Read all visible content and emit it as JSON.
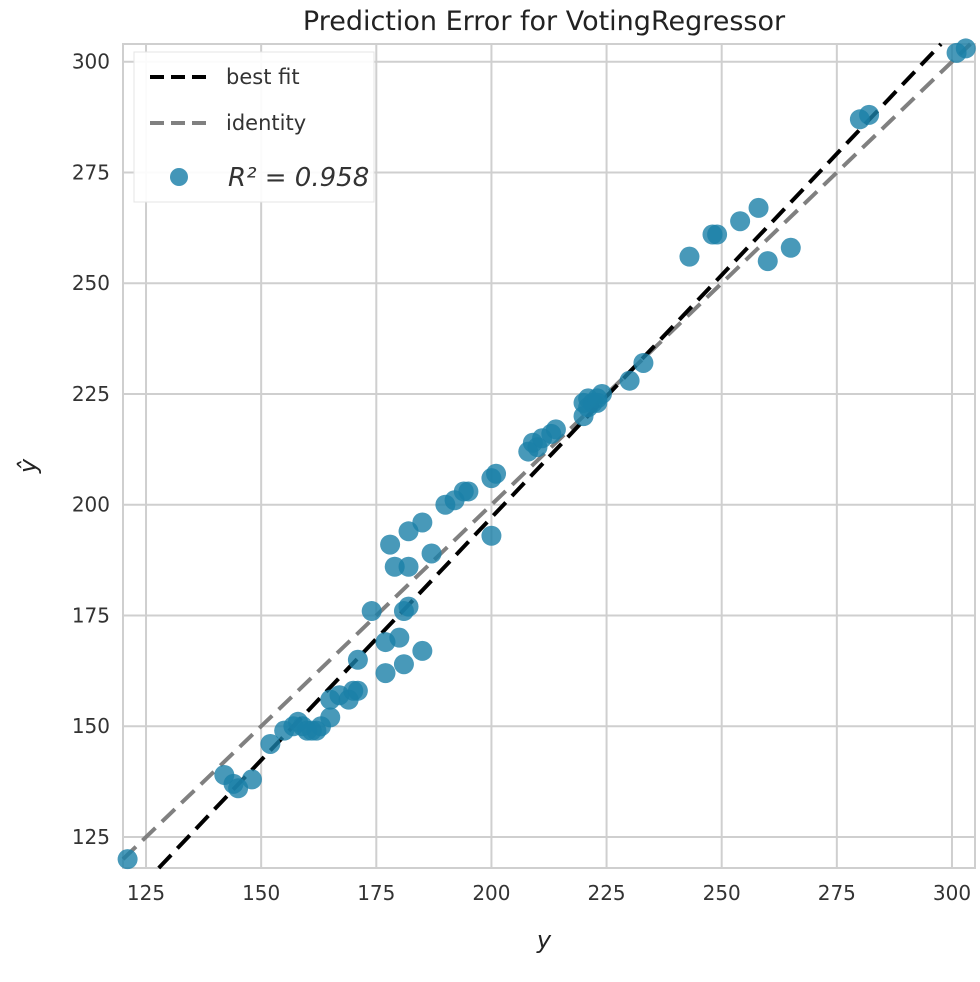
{
  "chart_data": {
    "type": "scatter",
    "title": "Prediction Error for VotingRegressor",
    "xlabel": "y",
    "ylabel": "ŷ",
    "xlim": [
      120,
      305
    ],
    "ylim": [
      118,
      304
    ],
    "x_ticks": [
      125,
      150,
      175,
      200,
      225,
      250,
      275,
      300
    ],
    "y_ticks": [
      125,
      150,
      175,
      200,
      225,
      250,
      275,
      300
    ],
    "grid": true,
    "legend_position": "top-left",
    "legend": {
      "best_fit_label": "best fit",
      "identity_label": "identity",
      "r2_label": "R² = 0.958"
    },
    "colors": {
      "points": "#1a7fa8",
      "best_fit": "#000000",
      "identity": "#808080",
      "grid": "#cfcfcf"
    },
    "best_fit_line": {
      "slope": 1.095,
      "intercept": -21.9
    },
    "identity_line": {
      "slope": 1,
      "intercept": 0
    },
    "points": [
      {
        "x": 121,
        "y": 120
      },
      {
        "x": 142,
        "y": 139
      },
      {
        "x": 144,
        "y": 137
      },
      {
        "x": 145,
        "y": 136
      },
      {
        "x": 148,
        "y": 138
      },
      {
        "x": 152,
        "y": 146
      },
      {
        "x": 155,
        "y": 149
      },
      {
        "x": 157,
        "y": 150
      },
      {
        "x": 158,
        "y": 151
      },
      {
        "x": 159,
        "y": 150
      },
      {
        "x": 160,
        "y": 149
      },
      {
        "x": 161,
        "y": 149
      },
      {
        "x": 162,
        "y": 149
      },
      {
        "x": 163,
        "y": 150
      },
      {
        "x": 165,
        "y": 152
      },
      {
        "x": 165,
        "y": 156
      },
      {
        "x": 167,
        "y": 157
      },
      {
        "x": 169,
        "y": 156
      },
      {
        "x": 170,
        "y": 158
      },
      {
        "x": 171,
        "y": 158
      },
      {
        "x": 171,
        "y": 165
      },
      {
        "x": 174,
        "y": 176
      },
      {
        "x": 177,
        "y": 162
      },
      {
        "x": 177,
        "y": 169
      },
      {
        "x": 178,
        "y": 191
      },
      {
        "x": 179,
        "y": 186
      },
      {
        "x": 180,
        "y": 170
      },
      {
        "x": 181,
        "y": 164
      },
      {
        "x": 181,
        "y": 176
      },
      {
        "x": 182,
        "y": 177
      },
      {
        "x": 182,
        "y": 186
      },
      {
        "x": 182,
        "y": 194
      },
      {
        "x": 185,
        "y": 167
      },
      {
        "x": 185,
        "y": 196
      },
      {
        "x": 187,
        "y": 189
      },
      {
        "x": 190,
        "y": 200
      },
      {
        "x": 192,
        "y": 201
      },
      {
        "x": 194,
        "y": 203
      },
      {
        "x": 195,
        "y": 203
      },
      {
        "x": 200,
        "y": 193
      },
      {
        "x": 200,
        "y": 206
      },
      {
        "x": 201,
        "y": 207
      },
      {
        "x": 208,
        "y": 212
      },
      {
        "x": 209,
        "y": 214
      },
      {
        "x": 210,
        "y": 213
      },
      {
        "x": 211,
        "y": 215
      },
      {
        "x": 213,
        "y": 216
      },
      {
        "x": 214,
        "y": 217
      },
      {
        "x": 220,
        "y": 220
      },
      {
        "x": 220,
        "y": 223
      },
      {
        "x": 221,
        "y": 222
      },
      {
        "x": 221,
        "y": 224
      },
      {
        "x": 222,
        "y": 223
      },
      {
        "x": 223,
        "y": 224
      },
      {
        "x": 224,
        "y": 225
      },
      {
        "x": 223,
        "y": 223
      },
      {
        "x": 230,
        "y": 228
      },
      {
        "x": 233,
        "y": 232
      },
      {
        "x": 243,
        "y": 256
      },
      {
        "x": 248,
        "y": 261
      },
      {
        "x": 249,
        "y": 261
      },
      {
        "x": 254,
        "y": 264
      },
      {
        "x": 258,
        "y": 267
      },
      {
        "x": 260,
        "y": 255
      },
      {
        "x": 265,
        "y": 258
      },
      {
        "x": 280,
        "y": 287
      },
      {
        "x": 282,
        "y": 288
      },
      {
        "x": 301,
        "y": 302
      },
      {
        "x": 303,
        "y": 303
      }
    ]
  }
}
